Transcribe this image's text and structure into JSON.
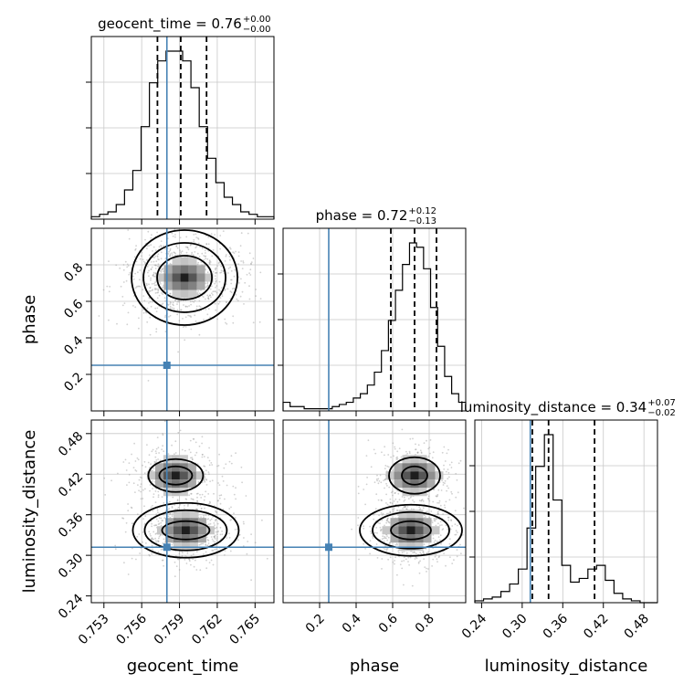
{
  "chart_data": {
    "type": "corner",
    "parameters": [
      "geocent_time",
      "phase",
      "luminosity_distance"
    ],
    "truths": {
      "geocent_time": 0.758,
      "phase": 0.25,
      "luminosity_distance": 0.312
    },
    "marginal_titles": [
      {
        "param": "geocent_time",
        "lead": "geocent_time = 0.76",
        "plus": "+0.00",
        "minus": "−0.00"
      },
      {
        "param": "phase",
        "lead": "phase = 0.72",
        "plus": "+0.12",
        "minus": "−0.13"
      },
      {
        "param": "luminosity_distance",
        "lead": "luminosity_distance = 0.34",
        "plus": "+0.07",
        "minus": "−0.02"
      }
    ],
    "quantiles": {
      "geocent_time": [
        0.75725,
        0.7591,
        0.76115
      ],
      "phase": [
        0.59,
        0.72,
        0.84
      ],
      "luminosity_distance": [
        0.315,
        0.339,
        0.407
      ]
    },
    "axis_ranges": {
      "geocent_time": [
        0.752,
        0.7665
      ],
      "phase": [
        0.0,
        1.0
      ],
      "luminosity_distance": [
        0.23,
        0.5
      ]
    },
    "axis_labels": {
      "x": [
        "geocent_time",
        "phase",
        "luminosity_distance"
      ],
      "y": [
        "phase",
        "luminosity_distance"
      ]
    },
    "ticks": {
      "geocent_time": [
        "0.753",
        "0.756",
        "0.759",
        "0.762",
        "0.765"
      ],
      "phase": [
        "0.2",
        "0.4",
        "0.6",
        "0.8"
      ],
      "luminosity_distance": [
        "0.24",
        "0.30",
        "0.36",
        "0.42",
        "0.48"
      ]
    },
    "histograms": {
      "geocent_time": {
        "bins": [
          0.752,
          0.7665
        ],
        "counts": [
          1,
          2,
          3,
          6,
          12,
          20,
          38,
          56,
          65,
          69,
          69,
          65,
          54,
          38,
          25,
          15,
          9,
          6,
          3,
          2,
          1,
          1
        ]
      },
      "phase": {
        "bins": [
          0.0,
          1.0
        ],
        "counts": [
          2,
          1,
          1,
          0.5,
          0.5,
          0.5,
          0.5,
          1,
          1.5,
          2,
          3,
          4,
          6,
          9,
          14,
          21,
          28,
          34,
          39,
          38,
          33,
          24,
          15,
          8,
          4,
          2
        ]
      },
      "luminosity_distance": {
        "bins": [
          0.23,
          0.5
        ],
        "counts": [
          1,
          2,
          3,
          6,
          10,
          18,
          40,
          73,
          90,
          55,
          20,
          11,
          13,
          18,
          20,
          12,
          5,
          2,
          1,
          0,
          0
        ]
      }
    },
    "contour_centers": {
      "geocent_time_vs_phase": [
        {
          "x": 0.7594,
          "y": 0.73
        }
      ],
      "geocent_time_vs_luminosity_distance": [
        {
          "x": 0.7595,
          "y": 0.337
        },
        {
          "x": 0.7587,
          "y": 0.418
        }
      ],
      "phase_vs_luminosity_distance": [
        {
          "x": 0.7,
          "y": 0.337
        },
        {
          "x": 0.72,
          "y": 0.418
        }
      ]
    },
    "colors": {
      "truth": "#4682b4",
      "hist": "#000000",
      "grid": "#c8c8c8",
      "samples": "#9a9a9a"
    }
  }
}
